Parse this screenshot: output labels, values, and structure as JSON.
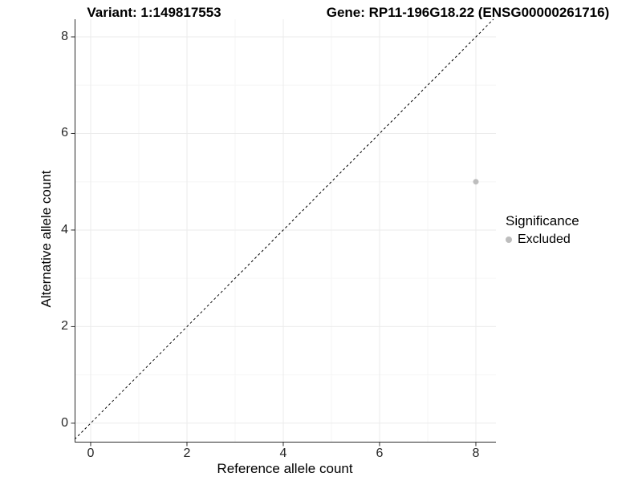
{
  "chart_data": {
    "type": "scatter",
    "title_left": "Variant: 1:149817553",
    "title_right": "Gene: RP11-196G18.22 (ENSG00000261716)",
    "xlabel": "Reference allele count",
    "ylabel": "Alternative allele count",
    "xlim": [
      -0.333,
      8.417
    ],
    "ylim": [
      -0.4,
      8.365
    ],
    "x_major_ticks": [
      0,
      2,
      4,
      6,
      8
    ],
    "y_major_ticks": [
      0,
      2,
      4,
      6,
      8
    ],
    "x_minor_ticks": [
      1,
      3,
      5,
      7
    ],
    "y_minor_ticks": [
      1,
      3,
      5,
      7
    ],
    "grid": true,
    "identity_line": {
      "equation": "y = x",
      "style": "dashed",
      "color": "#000000"
    },
    "series": [
      {
        "name": "Excluded",
        "color": "#bdbdbd",
        "points": [
          {
            "x": 8,
            "y": 5
          }
        ]
      }
    ],
    "legend": {
      "title": "Significance",
      "position": "right",
      "items": [
        {
          "label": "Excluded",
          "color": "#bdbdbd"
        }
      ]
    }
  },
  "colors": {
    "grid_major": "#ebebeb",
    "grid_minor": "#f6f6f6",
    "axis": "#2b2b2b",
    "tick": "#2b2b2b",
    "tick_label": "#262626",
    "background": "#ffffff"
  }
}
